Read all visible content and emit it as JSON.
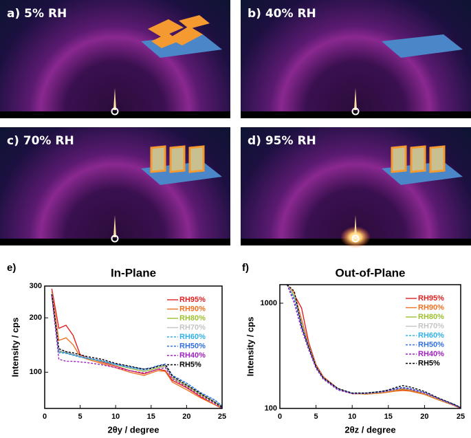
{
  "figure_panels": [
    {
      "label": "a) 5% RH"
    },
    {
      "label": "b) 40% RH"
    },
    {
      "label": "c) 70% RH"
    },
    {
      "label": "d) 95% RH"
    }
  ],
  "chart_data": [
    {
      "type": "line",
      "panel_label": "e)",
      "title": "In-Plane",
      "x_label": "2θy / degree",
      "y_label": "Intensity / cps",
      "log_y": true,
      "legend": "upper right",
      "xlim": [
        0,
        25
      ],
      "xticks": [
        0,
        5,
        10,
        15,
        20,
        25
      ],
      "ylim": [
        63,
        300
      ],
      "yticks": [
        100,
        200,
        300
      ],
      "x": [
        1,
        2,
        3,
        4,
        5,
        6,
        8,
        10,
        12,
        14,
        15,
        16,
        17,
        18,
        20,
        22,
        24,
        25
      ],
      "series": [
        {
          "name": "RH95%",
          "color": "#e02020",
          "dashed": false,
          "values": [
            290,
            175,
            182,
            160,
            125,
            120,
            114,
            108,
            102,
            98,
            101,
            104,
            102,
            90,
            82,
            73,
            66,
            63
          ]
        },
        {
          "name": "RH90%",
          "color": "#f07020",
          "dashed": false,
          "values": [
            280,
            150,
            155,
            142,
            122,
            118,
            112,
            106,
            100,
            96,
            99,
            102,
            101,
            88,
            80,
            72,
            66,
            63
          ]
        },
        {
          "name": "RH80%",
          "color": "#9cc030",
          "dashed": false,
          "values": [
            275,
            130,
            128,
            125,
            122,
            119,
            115,
            110,
            105,
            101,
            103,
            106,
            108,
            93,
            84,
            75,
            68,
            64
          ]
        },
        {
          "name": "RH70%",
          "color": "#c4c4c4",
          "dashed": false,
          "values": [
            275,
            132,
            130,
            126,
            123,
            120,
            116,
            111,
            106,
            102,
            104,
            107,
            109,
            94,
            85,
            76,
            69,
            65
          ]
        },
        {
          "name": "RH60%",
          "color": "#30b0e8",
          "dashed": true,
          "values": [
            270,
            128,
            127,
            124,
            121,
            119,
            115,
            110,
            106,
            103,
            105,
            108,
            110,
            96,
            87,
            77,
            70,
            65
          ]
        },
        {
          "name": "RH50%",
          "color": "#3070e0",
          "dashed": true,
          "values": [
            270,
            130,
            128,
            125,
            122,
            120,
            116,
            111,
            107,
            104,
            106,
            109,
            111,
            96,
            87,
            77,
            70,
            65
          ]
        },
        {
          "name": "RH40%",
          "color": "#a020c0",
          "dashed": true,
          "values": [
            265,
            118,
            115,
            115,
            114,
            113,
            110,
            106,
            102,
            99,
            101,
            104,
            106,
            92,
            83,
            74,
            67,
            63
          ]
        },
        {
          "name": "RH5%",
          "color": "#000000",
          "dashed": true,
          "values": [
            270,
            135,
            130,
            128,
            125,
            122,
            118,
            112,
            108,
            104,
            105,
            108,
            110,
            95,
            85,
            76,
            68,
            64
          ]
        }
      ]
    },
    {
      "type": "line",
      "panel_label": "f)",
      "title": "Out-of-Plane",
      "x_label": "2θz / degree",
      "y_label": "Intensity / cps",
      "log_y": true,
      "legend": "upper right",
      "xlim": [
        0,
        25
      ],
      "xticks": [
        0,
        5,
        10,
        15,
        20,
        25
      ],
      "ylim": [
        100,
        1500
      ],
      "yticks": [
        100,
        1000
      ],
      "x": [
        1,
        2,
        3,
        4,
        5,
        6,
        8,
        10,
        12,
        14,
        15,
        16,
        17,
        18,
        20,
        22,
        24,
        25
      ],
      "series": [
        {
          "name": "RH95%",
          "color": "#e02020",
          "dashed": false,
          "values": [
            1500,
            1200,
            900,
            420,
            260,
            200,
            155,
            138,
            137,
            140,
            143,
            147,
            150,
            148,
            138,
            122,
            108,
            100
          ]
        },
        {
          "name": "RH90%",
          "color": "#f07020",
          "dashed": false,
          "values": [
            1500,
            1250,
            700,
            400,
            255,
            198,
            154,
            138,
            137,
            140,
            143,
            146,
            148,
            146,
            136,
            120,
            107,
            100
          ]
        },
        {
          "name": "RH80%",
          "color": "#9cc030",
          "dashed": false,
          "values": [
            1500,
            1150,
            650,
            390,
            250,
            195,
            153,
            138,
            138,
            142,
            146,
            150,
            153,
            150,
            139,
            122,
            108,
            101
          ]
        },
        {
          "name": "RH70%",
          "color": "#c4c4c4",
          "dashed": false,
          "values": [
            1500,
            1200,
            640,
            385,
            250,
            195,
            153,
            139,
            139,
            143,
            147,
            152,
            156,
            152,
            140,
            123,
            109,
            101
          ]
        },
        {
          "name": "RH60%",
          "color": "#30b0e8",
          "dashed": true,
          "values": [
            1500,
            1100,
            620,
            380,
            248,
            194,
            153,
            139,
            140,
            144,
            148,
            154,
            158,
            154,
            141,
            124,
            109,
            101
          ]
        },
        {
          "name": "RH50%",
          "color": "#3070e0",
          "dashed": true,
          "values": [
            1500,
            1080,
            610,
            378,
            247,
            193,
            152,
            139,
            140,
            145,
            149,
            155,
            159,
            155,
            142,
            124,
            110,
            102
          ]
        },
        {
          "name": "RH40%",
          "color": "#a020c0",
          "dashed": true,
          "values": [
            1500,
            1000,
            560,
            360,
            240,
            190,
            150,
            138,
            139,
            143,
            147,
            152,
            156,
            152,
            140,
            123,
            108,
            101
          ]
        },
        {
          "name": "RH5%",
          "color": "#000000",
          "dashed": true,
          "values": [
            1500,
            1300,
            600,
            380,
            250,
            195,
            155,
            140,
            140,
            145,
            150,
            158,
            165,
            160,
            145,
            125,
            110,
            102
          ]
        }
      ]
    }
  ]
}
